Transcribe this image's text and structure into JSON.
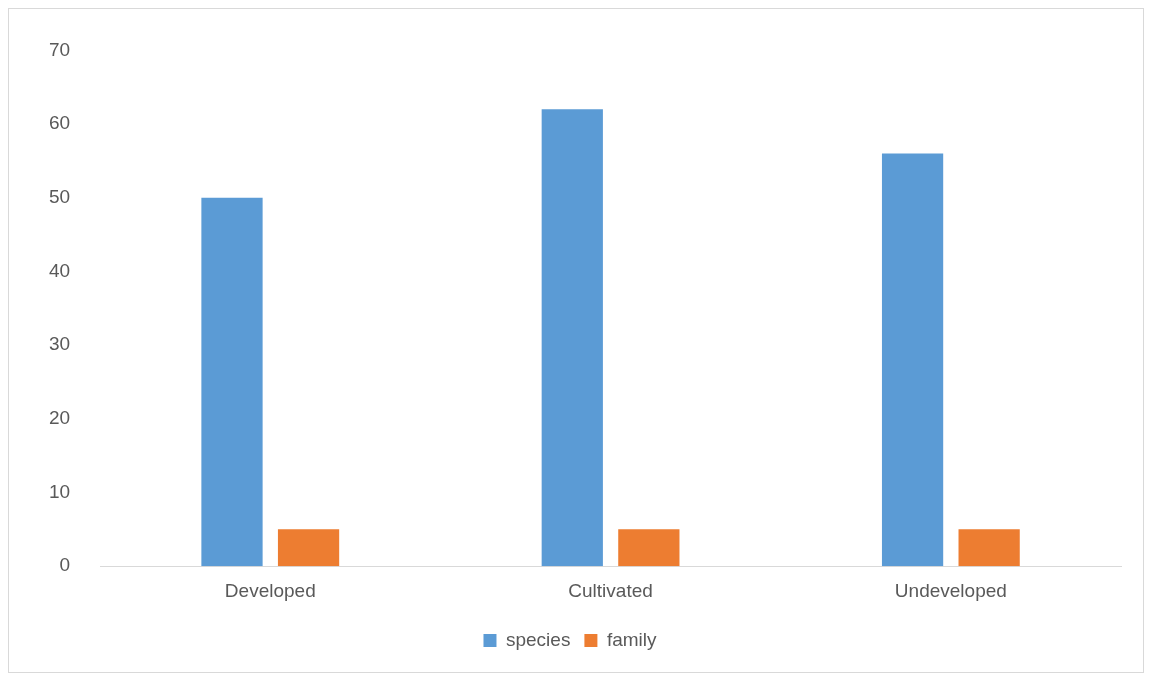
{
  "chart_data": {
    "type": "bar",
    "categories": [
      "Developed",
      "Cultivated",
      "Undeveloped"
    ],
    "series": [
      {
        "name": "species",
        "color": "#5b9bd5",
        "values": [
          50,
          62,
          56
        ]
      },
      {
        "name": "family",
        "color": "#ed7d31",
        "values": [
          5,
          5,
          5
        ]
      }
    ],
    "ylim": [
      0,
      70
    ],
    "yticks": [
      0,
      10,
      20,
      30,
      40,
      50,
      60,
      70
    ],
    "grid": false,
    "legend": "bottom"
  }
}
